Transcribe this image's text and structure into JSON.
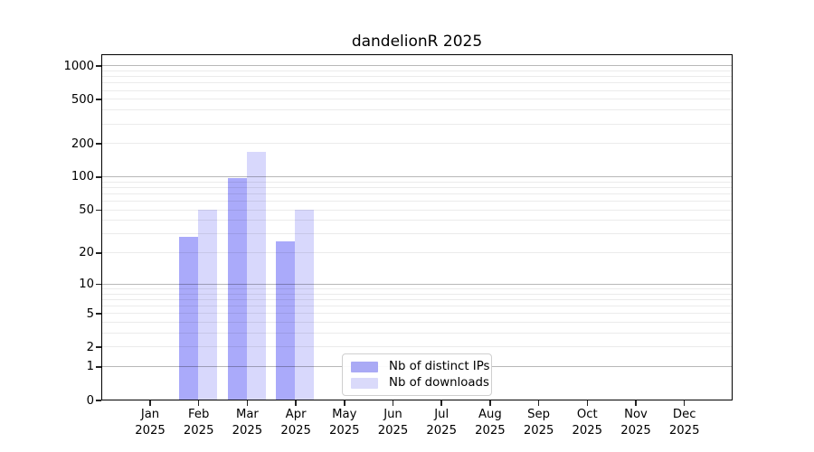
{
  "chart_data": {
    "type": "bar",
    "title": "dandelionR 2025",
    "categories": [
      "Jan 2025",
      "Feb 2025",
      "Mar 2025",
      "Apr 2025",
      "May 2025",
      "Jun 2025",
      "Jul 2025",
      "Aug 2025",
      "Sep 2025",
      "Oct 2025",
      "Nov 2025",
      "Dec 2025"
    ],
    "series": [
      {
        "name": "Nb of distinct IPs",
        "color": "#aaaaf5",
        "bar_fill": "rgba(85,85,245,0.5)",
        "values": [
          0,
          29,
          100,
          26,
          0,
          0,
          0,
          0,
          0,
          0,
          0,
          0
        ]
      },
      {
        "name": "Nb of downloads",
        "color": "#dadafa",
        "bar_fill": "rgba(177,177,250,0.5)",
        "values": [
          0,
          51,
          172,
          51,
          0,
          0,
          0,
          0,
          0,
          0,
          0,
          0
        ]
      }
    ],
    "yscale": "log1p",
    "yticks": [
      0,
      1,
      2,
      5,
      10,
      20,
      50,
      100,
      200,
      500,
      1000
    ],
    "ylim": [
      0,
      1230
    ],
    "xlabel": "",
    "ylabel": "",
    "grid": {
      "horizontal": true,
      "minor_log_gridlines": true,
      "vertical": false
    },
    "legend_position": "lower-center"
  }
}
